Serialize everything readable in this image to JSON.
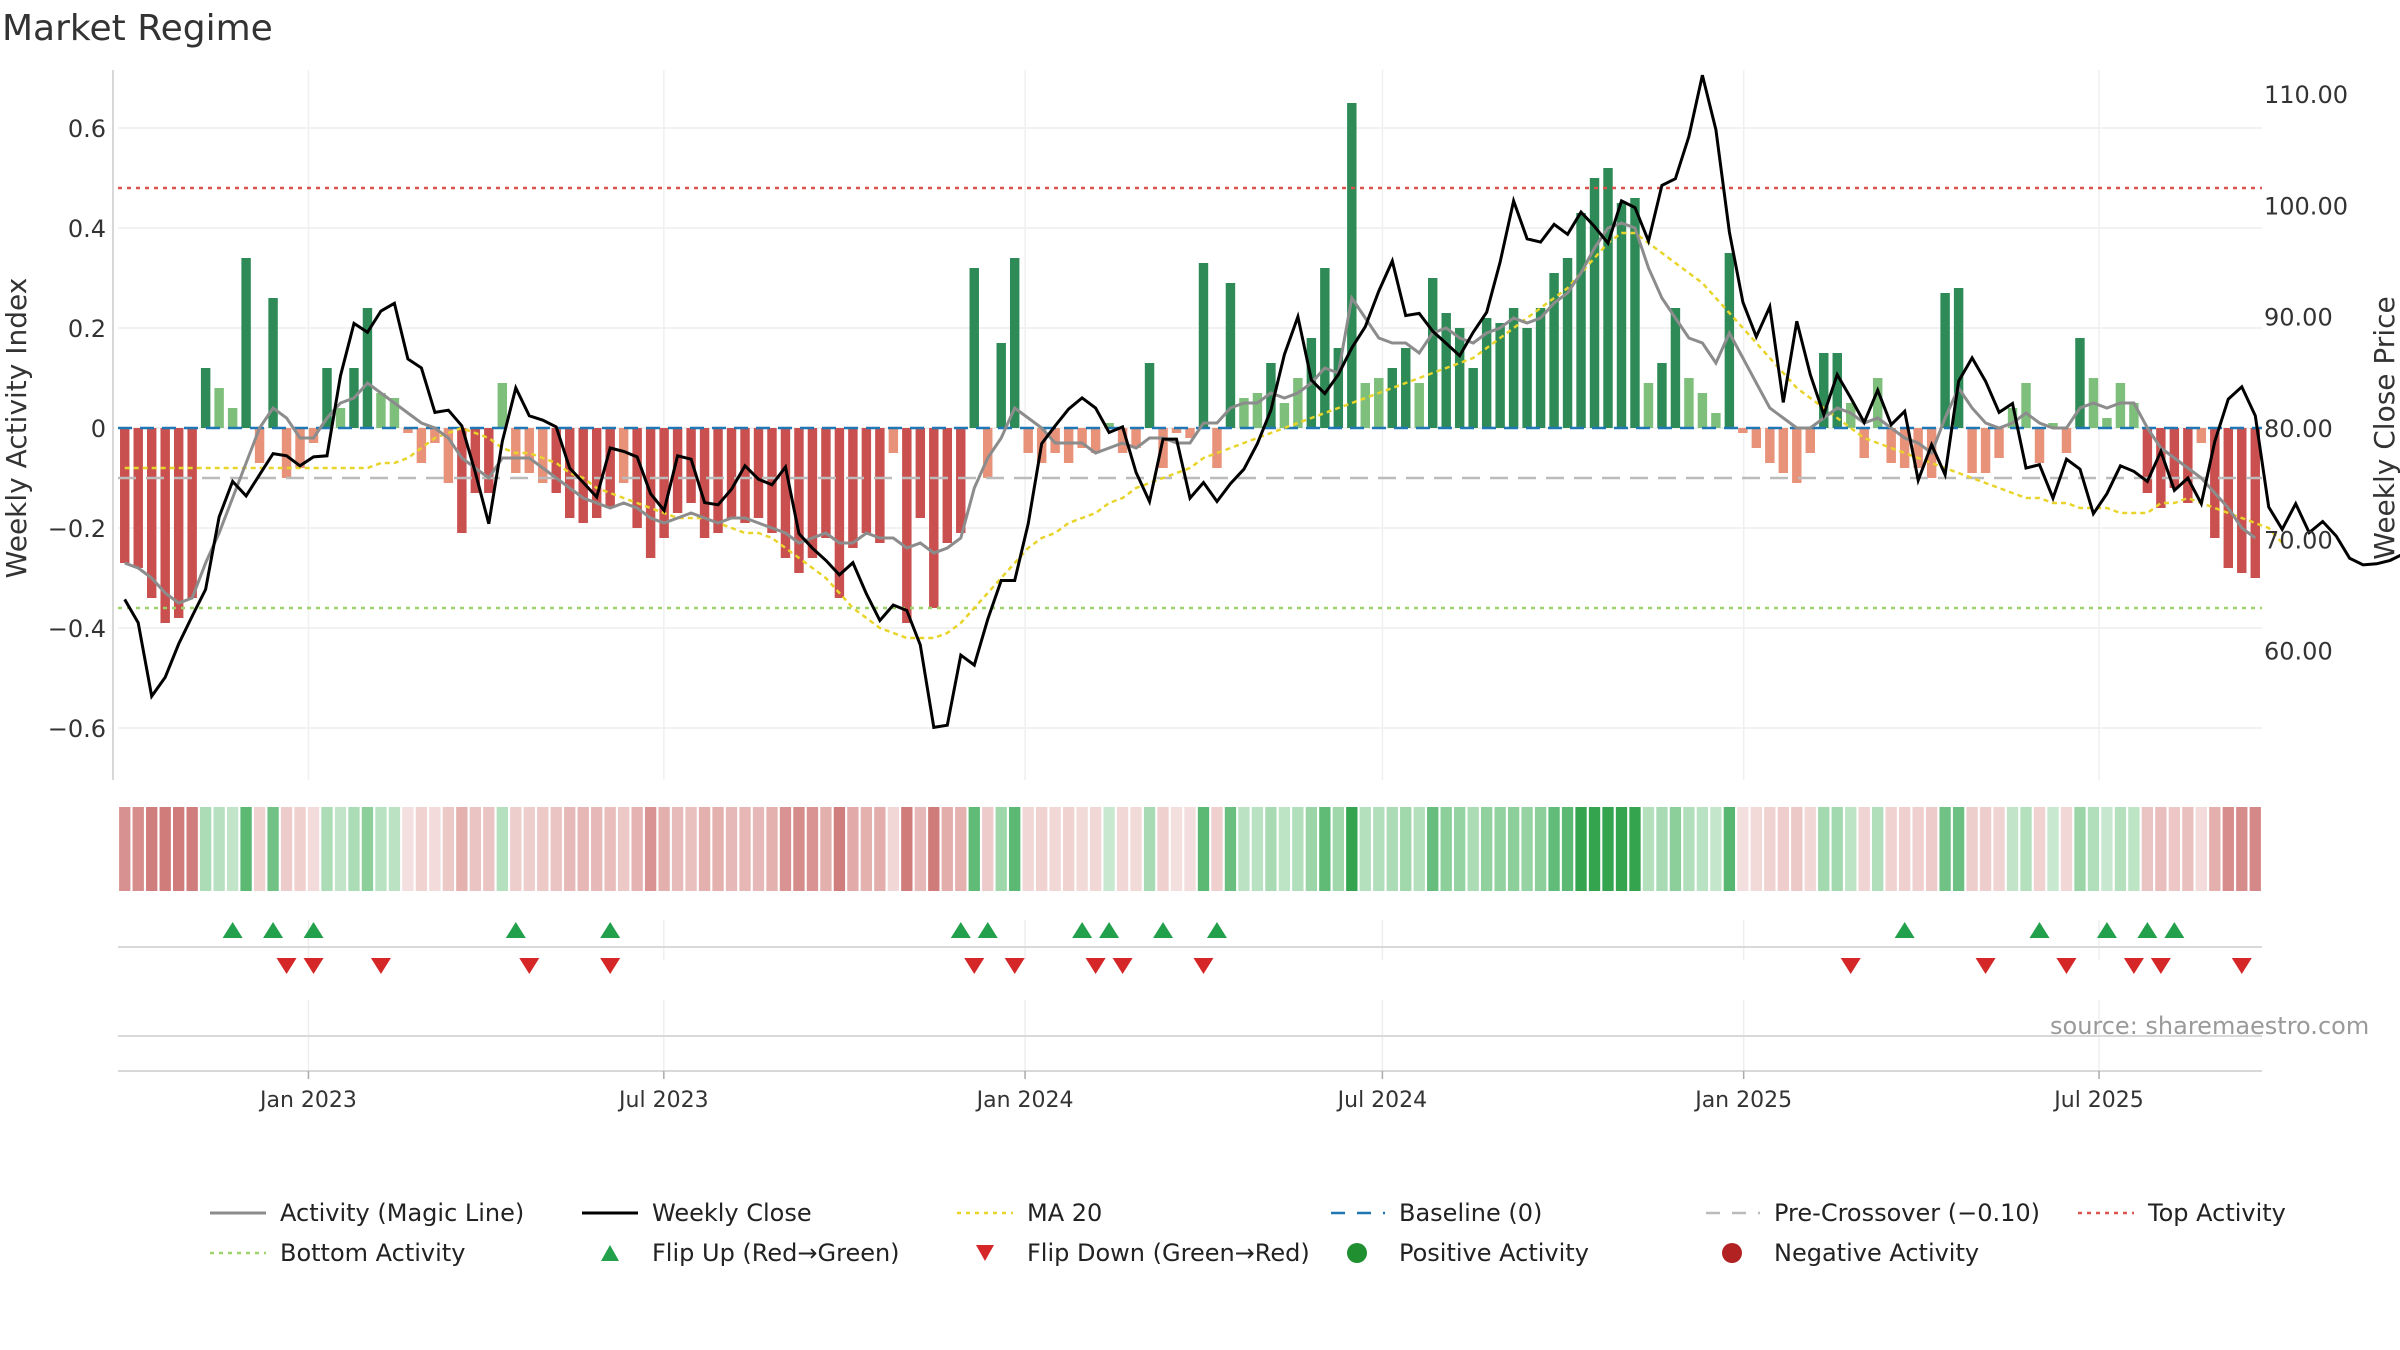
{
  "title": "Market Regime",
  "source": "source: sharemaestro.com",
  "colors": {
    "pos_strong": "#2e8b57",
    "pos_light": "#7dbf7b",
    "neg_strong": "#c9504f",
    "neg_light": "#e8927a",
    "close": "#000000",
    "magic": "#8c8c8c",
    "ma": "#e8d42a",
    "baseline": "#1f77b4",
    "pre": "#bbbbbb",
    "top": "#d9534f",
    "bottom": "#9ed26a",
    "flip_up": "#22a04b",
    "flip_down": "#d62728",
    "pos_dot": "#1f8f2f",
    "neg_dot": "#b22222"
  },
  "chart_data": {
    "type": "bar",
    "title": "Market Regime",
    "ylabel": "Weekly Activity Index",
    "y2label": "Weekly Close Price",
    "ylim": [
      -0.7,
      0.7
    ],
    "y2lim": [
      50.5,
      115.2
    ],
    "yticks": [
      "0.6",
      "0.4",
      "0.2",
      "0",
      "−0.2",
      "−0.4",
      "−0.6"
    ],
    "y2ticks": [
      "110.00",
      "100.00",
      "90.00",
      "80.00",
      "70.00",
      "60.00"
    ],
    "x_start": "2022-09-26",
    "x_end": "2025-09-22",
    "xticks": [
      {
        "date": "2023-01-01",
        "label": "Jan 2023"
      },
      {
        "date": "2023-07-01",
        "label": "Jul 2023"
      },
      {
        "date": "2024-01-01",
        "label": "Jan 2024"
      },
      {
        "date": "2024-07-01",
        "label": "Jul 2024"
      },
      {
        "date": "2025-01-01",
        "label": "Jan 2025"
      },
      {
        "date": "2025-07-01",
        "label": "Jul 2025"
      }
    ],
    "activity": [
      -0.27,
      -0.28,
      -0.34,
      -0.39,
      -0.38,
      -0.34,
      0.12,
      0.08,
      0.04,
      0.34,
      -0.07,
      0.26,
      -0.1,
      -0.08,
      -0.03,
      0.12,
      0.04,
      0.12,
      0.24,
      0.07,
      0.06,
      -0.01,
      -0.07,
      -0.03,
      -0.11,
      -0.21,
      -0.13,
      -0.13,
      0.09,
      -0.09,
      -0.09,
      -0.11,
      -0.13,
      -0.18,
      -0.19,
      -0.18,
      -0.16,
      -0.11,
      -0.2,
      -0.26,
      -0.22,
      -0.17,
      -0.15,
      -0.22,
      -0.21,
      -0.18,
      -0.19,
      -0.18,
      -0.21,
      -0.26,
      -0.29,
      -0.26,
      -0.22,
      -0.34,
      -0.24,
      -0.21,
      -0.23,
      -0.05,
      -0.39,
      -0.18,
      -0.36,
      -0.23,
      -0.21,
      0.32,
      -0.1,
      0.17,
      0.34,
      -0.05,
      -0.07,
      -0.05,
      -0.07,
      -0.04,
      -0.05,
      0.01,
      -0.05,
      -0.04,
      0.13,
      -0.08,
      -0.01,
      -0.02,
      0.33,
      -0.08,
      0.29,
      0.06,
      0.07,
      0.13,
      0.05,
      0.1,
      0.18,
      0.32,
      0.16,
      0.65,
      0.09,
      0.1,
      0.12,
      0.16,
      0.09,
      0.3,
      0.23,
      0.2,
      0.12,
      0.22,
      0.21,
      0.24,
      0.2,
      0.24,
      0.31,
      0.34,
      0.43,
      0.5,
      0.52,
      0.45,
      0.46,
      0.09,
      0.13,
      0.24,
      0.1,
      0.07,
      0.03,
      0.35,
      -0.01,
      -0.04,
      -0.07,
      -0.09,
      -0.11,
      -0.05,
      0.15,
      0.15,
      0.05,
      -0.06,
      0.1,
      -0.07,
      -0.08,
      -0.08,
      -0.1,
      0.27,
      0.28,
      -0.09,
      -0.09,
      -0.06,
      0.04,
      0.09,
      -0.07,
      0.01,
      -0.05,
      0.18,
      0.1,
      0.02,
      0.09,
      0.05,
      -0.13,
      -0.16,
      -0.12,
      -0.15,
      -0.03,
      -0.22,
      -0.28,
      -0.29,
      -0.3
    ],
    "close": [
      64.6,
      62.5,
      55.9,
      57.6,
      60.6,
      63.1,
      65.5,
      72,
      75.2,
      73.9,
      75.8,
      77.7,
      77.5,
      76.6,
      77.4,
      77.5,
      84.7,
      89.4,
      88.6,
      90.5,
      91.2,
      86.2,
      85.4,
      81.4,
      81.6,
      80.2,
      76,
      71.4,
      78.8,
      83.6,
      81.1,
      80.7,
      80.1,
      76.4,
      75.1,
      73.8,
      78.2,
      77.9,
      77.4,
      74.1,
      72.6,
      77.5,
      77.2,
      73.3,
      73.1,
      74.5,
      76.6,
      75.4,
      74.9,
      76.5,
      70.5,
      69.2,
      68.1,
      66.8,
      67.9,
      65.1,
      62.7,
      64.1,
      63.6,
      60.5,
      53.1,
      53.3,
      59.6,
      58.7,
      62.8,
      66.3,
      66.3,
      71.4,
      78.6,
      80.2,
      81.7,
      82.7,
      81.8,
      79.6,
      80.1,
      76,
      73.4,
      79,
      79,
      73.7,
      75.1,
      73.4,
      75,
      76.3,
      78.6,
      81.6,
      86.6,
      90,
      84.3,
      83.1,
      84.8,
      87.2,
      89.1,
      92.3,
      95,
      90.1,
      90.3,
      88.7,
      87.6,
      86.5,
      88.6,
      90.4,
      94.9,
      100.4,
      97,
      96.7,
      98.3,
      97.4,
      99.4,
      98.1,
      96.6,
      100.4,
      99.8,
      96.8,
      101.8,
      102.4,
      106.2,
      111.7,
      106.8,
      97.6,
      91.3,
      88.2,
      90.9,
      82.3,
      89.6,
      84.8,
      81.2,
      84.8,
      82.7,
      80.5,
      83.4,
      80.3,
      81.5,
      75.3,
      78.5,
      75.8,
      84.2,
      86.3,
      84.2,
      81.4,
      82.2,
      76.4,
      76.7,
      73.7,
      77.2,
      76.3,
      72.3,
      74.1,
      76.6,
      76.1,
      75.2,
      77.9,
      74.4,
      75.5,
      73.2,
      78.8,
      82.6,
      83.7,
      81.1,
      72.9,
      70.9,
      73.2,
      70.6,
      71.6,
      70.3,
      68.3,
      67.7,
      67.8,
      68.1,
      68.7,
      71.3
    ],
    "magic": [
      -0.27,
      -0.28,
      -0.3,
      -0.33,
      -0.35,
      -0.34,
      -0.27,
      -0.21,
      -0.14,
      -0.07,
      0.0,
      0.04,
      0.02,
      -0.02,
      -0.02,
      0.02,
      0.05,
      0.06,
      0.09,
      0.07,
      0.05,
      0.03,
      0.01,
      0.0,
      -0.02,
      -0.06,
      -0.08,
      -0.1,
      -0.06,
      -0.06,
      -0.06,
      -0.08,
      -0.1,
      -0.12,
      -0.14,
      -0.15,
      -0.16,
      -0.15,
      -0.16,
      -0.18,
      -0.19,
      -0.18,
      -0.17,
      -0.18,
      -0.19,
      -0.18,
      -0.18,
      -0.19,
      -0.2,
      -0.21,
      -0.23,
      -0.22,
      -0.21,
      -0.23,
      -0.23,
      -0.21,
      -0.22,
      -0.22,
      -0.24,
      -0.23,
      -0.25,
      -0.24,
      -0.22,
      -0.12,
      -0.06,
      -0.02,
      0.04,
      0.02,
      0.0,
      -0.03,
      -0.03,
      -0.03,
      -0.05,
      -0.04,
      -0.03,
      -0.04,
      -0.02,
      -0.02,
      -0.03,
      -0.03,
      0.01,
      0.01,
      0.04,
      0.05,
      0.05,
      0.07,
      0.06,
      0.07,
      0.09,
      0.12,
      0.11,
      0.26,
      0.22,
      0.18,
      0.17,
      0.17,
      0.15,
      0.19,
      0.2,
      0.18,
      0.17,
      0.19,
      0.2,
      0.22,
      0.21,
      0.22,
      0.25,
      0.27,
      0.31,
      0.36,
      0.4,
      0.41,
      0.4,
      0.32,
      0.26,
      0.22,
      0.18,
      0.17,
      0.13,
      0.19,
      0.14,
      0.09,
      0.04,
      0.02,
      0.0,
      0.0,
      0.02,
      0.04,
      0.03,
      0.01,
      0.02,
      0.0,
      -0.02,
      -0.03,
      -0.05,
      0.02,
      0.08,
      0.04,
      0.01,
      0.0,
      0.01,
      0.03,
      0.01,
      0.0,
      0.0,
      0.04,
      0.05,
      0.04,
      0.05,
      0.05,
      0.0,
      -0.04,
      -0.06,
      -0.08,
      -0.1,
      -0.13,
      -0.16,
      -0.2,
      -0.22
    ],
    "ma20": [
      -0.08,
      -0.08,
      -0.08,
      -0.08,
      -0.08,
      -0.08,
      -0.08,
      -0.08,
      -0.08,
      -0.08,
      -0.08,
      -0.08,
      -0.08,
      -0.08,
      -0.08,
      -0.08,
      -0.08,
      -0.08,
      -0.08,
      -0.07,
      -0.07,
      -0.06,
      -0.04,
      -0.02,
      -0.01,
      0.0,
      -0.01,
      -0.02,
      -0.04,
      -0.05,
      -0.05,
      -0.06,
      -0.07,
      -0.09,
      -0.1,
      -0.12,
      -0.13,
      -0.14,
      -0.15,
      -0.16,
      -0.17,
      -0.18,
      -0.18,
      -0.18,
      -0.19,
      -0.2,
      -0.21,
      -0.21,
      -0.22,
      -0.24,
      -0.26,
      -0.28,
      -0.3,
      -0.33,
      -0.36,
      -0.38,
      -0.4,
      -0.41,
      -0.42,
      -0.42,
      -0.42,
      -0.41,
      -0.39,
      -0.36,
      -0.33,
      -0.3,
      -0.27,
      -0.24,
      -0.22,
      -0.21,
      -0.19,
      -0.18,
      -0.17,
      -0.15,
      -0.14,
      -0.12,
      -0.11,
      -0.1,
      -0.09,
      -0.08,
      -0.06,
      -0.05,
      -0.04,
      -0.03,
      -0.02,
      -0.01,
      0.0,
      0.01,
      0.02,
      0.03,
      0.04,
      0.05,
      0.06,
      0.07,
      0.08,
      0.09,
      0.1,
      0.11,
      0.12,
      0.13,
      0.14,
      0.16,
      0.18,
      0.2,
      0.22,
      0.24,
      0.26,
      0.28,
      0.31,
      0.34,
      0.37,
      0.39,
      0.39,
      0.37,
      0.35,
      0.33,
      0.31,
      0.29,
      0.26,
      0.23,
      0.2,
      0.17,
      0.14,
      0.11,
      0.08,
      0.06,
      0.04,
      0.02,
      0.0,
      -0.02,
      -0.03,
      -0.04,
      -0.05,
      -0.06,
      -0.07,
      -0.08,
      -0.09,
      -0.1,
      -0.11,
      -0.12,
      -0.13,
      -0.14,
      -0.14,
      -0.15,
      -0.15,
      -0.16,
      -0.16,
      -0.16,
      -0.17,
      -0.17,
      -0.17,
      -0.15,
      -0.15,
      -0.14,
      -0.15,
      -0.16,
      -0.17,
      -0.18,
      -0.19,
      -0.2,
      -0.23
    ],
    "baseline": 0,
    "pre_crossover": -0.1,
    "top_activity": 0.48,
    "bottom_activity": -0.36,
    "flip_up_weeks": [
      8,
      11,
      14,
      29,
      36,
      62,
      64,
      71,
      73,
      77,
      81,
      132,
      142,
      147,
      150,
      152
    ],
    "flip_down_weeks": [
      12,
      14,
      19,
      30,
      36,
      63,
      66,
      72,
      74,
      80,
      128,
      138,
      144,
      149,
      151,
      157
    ],
    "legend": [
      {
        "key": "magic",
        "label": "Activity (Magic Line)",
        "icon": "line-icon"
      },
      {
        "key": "close",
        "label": "Weekly Close",
        "icon": "line-icon"
      },
      {
        "key": "ma",
        "label": "MA 20",
        "icon": "dotted-line-icon"
      },
      {
        "key": "baseline",
        "label": "Baseline (0)",
        "icon": "dashed-line-icon"
      },
      {
        "key": "pre",
        "label": "Pre-Crossover (−0.10)",
        "icon": "dashed-line-icon"
      },
      {
        "key": "top",
        "label": "Top Activity",
        "icon": "dotted-line-icon"
      },
      {
        "key": "bottom",
        "label": "Bottom Activity",
        "icon": "dotted-line-icon"
      },
      {
        "key": "flip_up",
        "label": "Flip Up (Red→Green)",
        "icon": "triangle-up-icon"
      },
      {
        "key": "flip_down",
        "label": "Flip Down (Green→Red)",
        "icon": "triangle-down-icon"
      },
      {
        "key": "pos_dot",
        "label": "Positive Activity",
        "icon": "circle-icon"
      },
      {
        "key": "neg_dot",
        "label": "Negative Activity",
        "icon": "circle-icon"
      }
    ]
  }
}
